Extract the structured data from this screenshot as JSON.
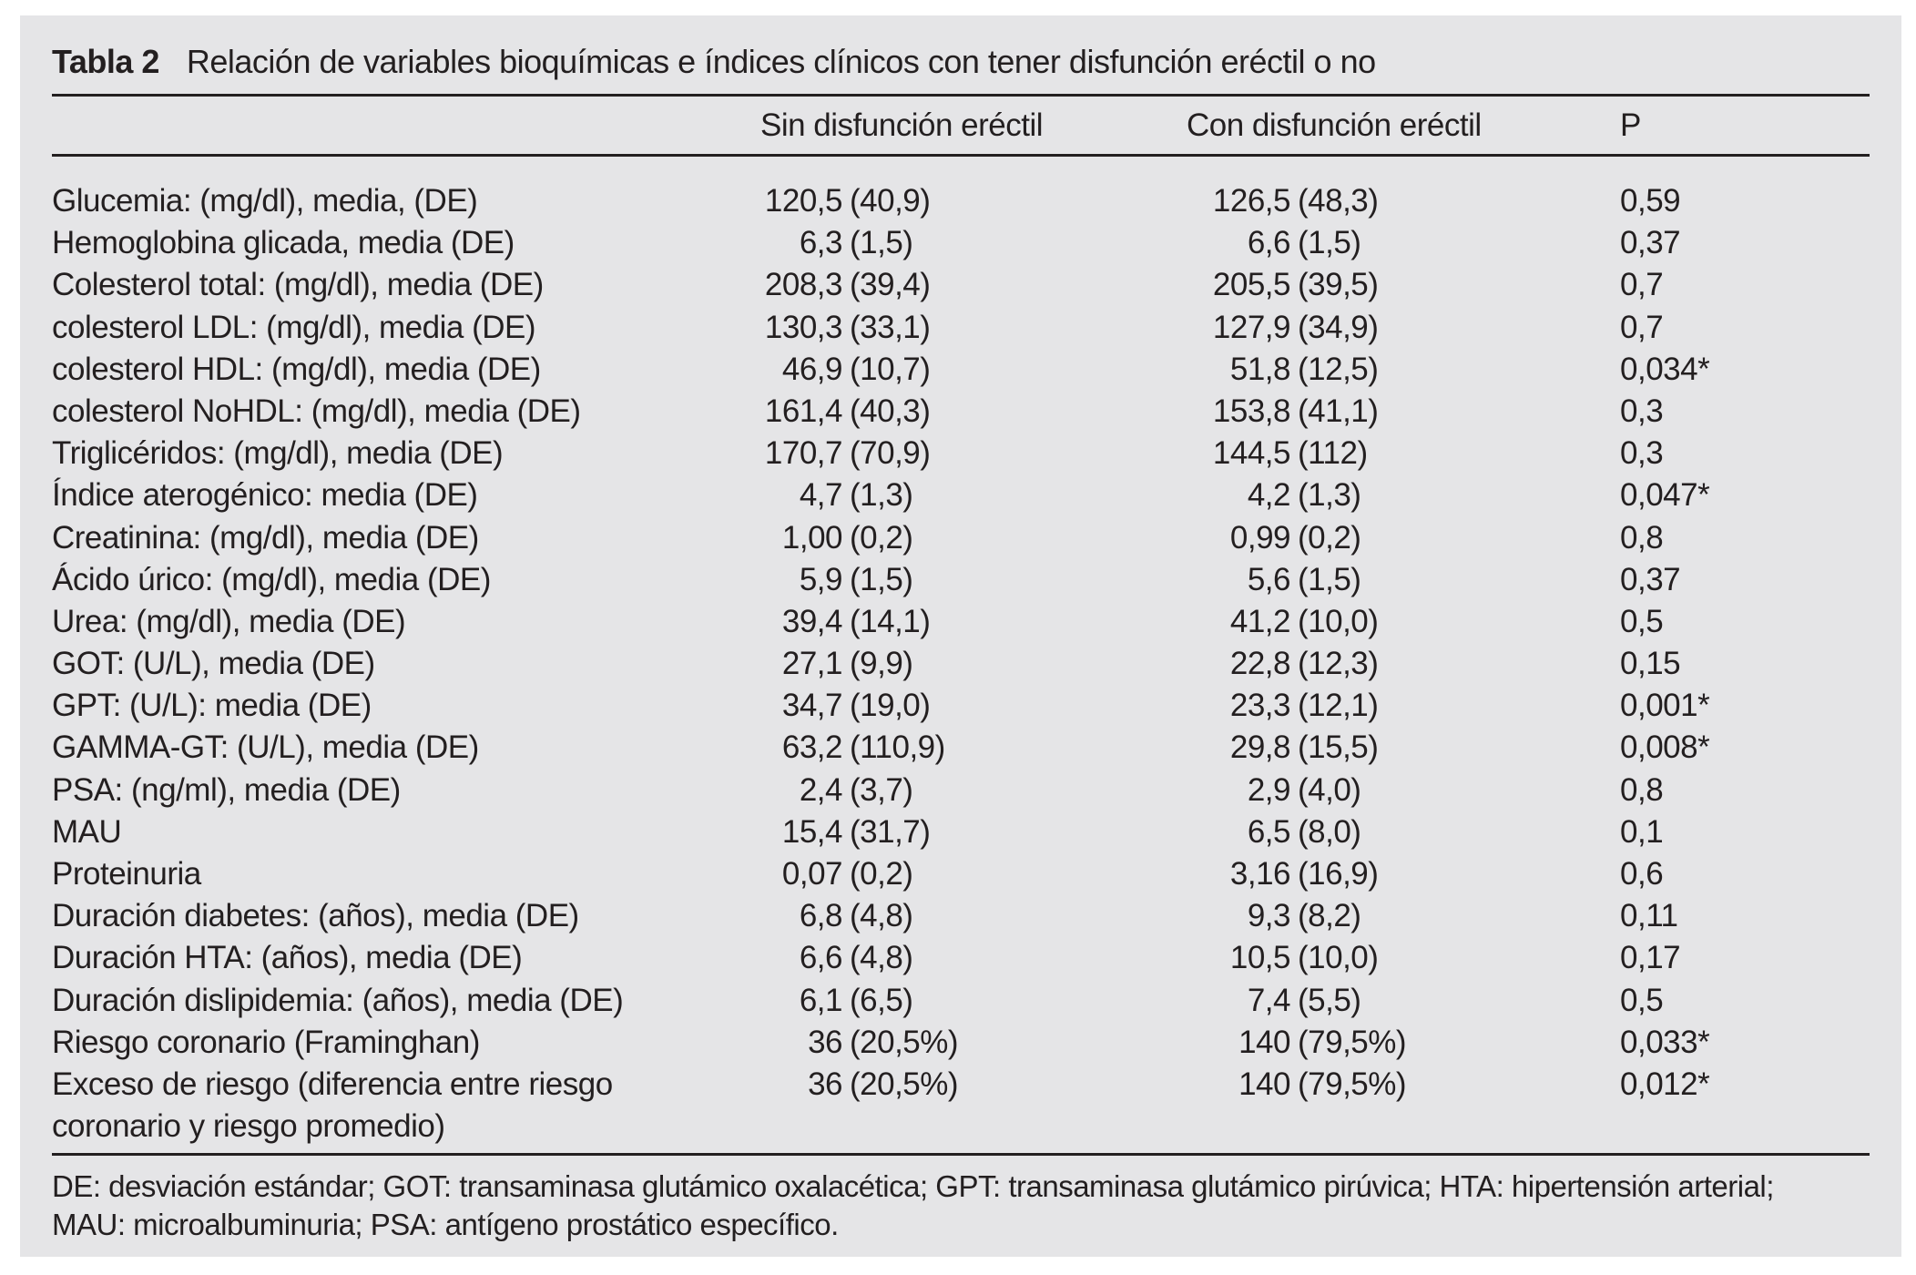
{
  "table": {
    "title_label": "Tabla 2",
    "title_text": "Relación de variables bioquímicas e índices clínicos con tener disfunción eréctil o no",
    "columns": [
      "",
      "Sin disfunción eréctil",
      "Con disfunción eréctil",
      "P"
    ],
    "rows": [
      {
        "label": "Glucemia: (mg/dl), media, (DE)",
        "sin": "120,5",
        "sin_sd": "(40,9)",
        "con": "126,5",
        "con_sd": "(48,3)",
        "p": "0,59"
      },
      {
        "label": "Hemoglobina glicada, media (DE)",
        "sin": "6,3",
        "sin_sd": "(1,5)",
        "con": "6,6",
        "con_sd": "(1,5)",
        "p": "0,37"
      },
      {
        "label": "Colesterol total: (mg/dl), media (DE)",
        "sin": "208,3",
        "sin_sd": "(39,4)",
        "con": "205,5",
        "con_sd": "(39,5)",
        "p": "0,7"
      },
      {
        "label": "colesterol LDL: (mg/dl), media (DE)",
        "sin": "130,3",
        "sin_sd": "(33,1)",
        "con": "127,9",
        "con_sd": "(34,9)",
        "p": "0,7"
      },
      {
        "label": "colesterol HDL: (mg/dl), media (DE)",
        "sin": "46,9",
        "sin_sd": "(10,7)",
        "con": "51,8",
        "con_sd": "(12,5)",
        "p": "0,034*"
      },
      {
        "label": "colesterol NoHDL: (mg/dl), media (DE)",
        "sin": "161,4",
        "sin_sd": "(40,3)",
        "con": "153,8",
        "con_sd": "(41,1)",
        "p": "0,3"
      },
      {
        "label": "Triglicéridos: (mg/dl), media (DE)",
        "sin": "170,7",
        "sin_sd": "(70,9)",
        "con": "144,5",
        "con_sd": "(112)",
        "p": "0,3"
      },
      {
        "label": "Índice aterogénico: media (DE)",
        "sin": "4,7",
        "sin_sd": "(1,3)",
        "con": "4,2",
        "con_sd": "(1,3)",
        "p": "0,047*"
      },
      {
        "label": "Creatinina: (mg/dl), media (DE)",
        "sin": "1,00",
        "sin_sd": "(0,2)",
        "con": "0,99",
        "con_sd": "(0,2)",
        "p": "0,8"
      },
      {
        "label": "Ácido úrico: (mg/dl), media (DE)",
        "sin": "5,9",
        "sin_sd": "(1,5)",
        "con": "5,6",
        "con_sd": "(1,5)",
        "p": "0,37"
      },
      {
        "label": "Urea: (mg/dl), media (DE)",
        "sin": "39,4",
        "sin_sd": "(14,1)",
        "con": "41,2",
        "con_sd": "(10,0)",
        "p": "0,5"
      },
      {
        "label": "GOT: (U/L), media (DE)",
        "sin": "27,1",
        "sin_sd": "(9,9)",
        "con": "22,8",
        "con_sd": "(12,3)",
        "p": "0,15"
      },
      {
        "label": "GPT: (U/L): media (DE)",
        "sin": "34,7",
        "sin_sd": "(19,0)",
        "con": "23,3",
        "con_sd": "(12,1)",
        "p": "0,001*"
      },
      {
        "label": "GAMMA-GT: (U/L), media (DE)",
        "sin": "63,2",
        "sin_sd": "(110,9)",
        "con": "29,8",
        "con_sd": "(15,5)",
        "p": "0,008*"
      },
      {
        "label": "PSA: (ng/ml), media (DE)",
        "sin": "2,4",
        "sin_sd": "(3,7)",
        "con": "2,9",
        "con_sd": "(4,0)",
        "p": "0,8"
      },
      {
        "label": "MAU",
        "sin": "15,4",
        "sin_sd": "(31,7)",
        "con": "6,5",
        "con_sd": "(8,0)",
        "p": "0,1"
      },
      {
        "label": "Proteinuria",
        "sin": "0,07",
        "sin_sd": "(0,2)",
        "con": "3,16",
        "con_sd": "(16,9)",
        "p": "0,6"
      },
      {
        "label": "Duración diabetes: (años), media (DE)",
        "sin": "6,8",
        "sin_sd": "(4,8)",
        "con": "9,3",
        "con_sd": "(8,2)",
        "p": "0,11"
      },
      {
        "label": "Duración HTA: (años), media (DE)",
        "sin": "6,6",
        "sin_sd": "(4,8)",
        "con": "10,5",
        "con_sd": "(10,0)",
        "p": "0,17"
      },
      {
        "label": "Duración dislipidemia: (años), media (DE)",
        "sin": "6,1",
        "sin_sd": "(6,5)",
        "con": "7,4",
        "con_sd": "(5,5)",
        "p": "0,5"
      },
      {
        "label": "Riesgo coronario (Framinghan)",
        "sin": "36",
        "sin_sd": "(20,5%)",
        "con": "140",
        "con_sd": "(79,5%)",
        "p": "0,033*"
      },
      {
        "label": "Exceso de riesgo (diferencia entre riesgo",
        "label2": "coronario y riesgo promedio)",
        "sin": "36",
        "sin_sd": "(20,5%)",
        "con": "140",
        "con_sd": "(79,5%)",
        "p": "0,012*"
      }
    ],
    "footnote": [
      "DE: desviación estándar; GOT: transaminasa glutámico oxalacética; GPT: transaminasa glutámico pirúvica; HTA: hipertensión arterial;",
      "MAU: microalbuminuria; PSA: antígeno prostático específico."
    ]
  },
  "colors": {
    "page_bg": "#ffffff",
    "panel_bg": "#e5e5e7",
    "text": "#231f20",
    "rule": "#231f20"
  }
}
